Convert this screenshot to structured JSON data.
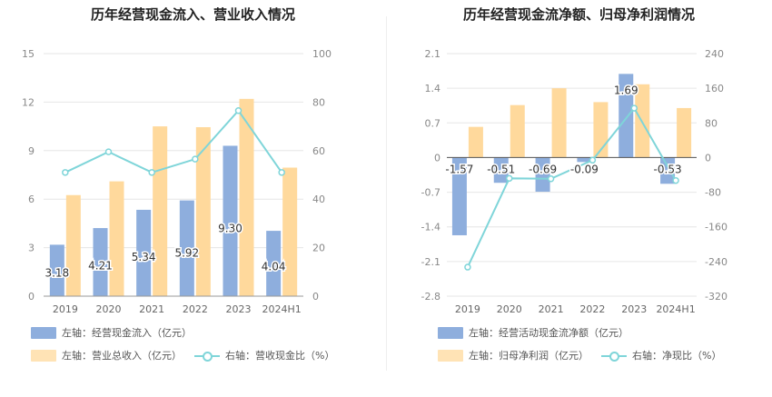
{
  "left_title": "历年经营现金流入、营业收入情况",
  "right_title": "历年经营现金流净额、归母净利润情况",
  "colors": {
    "bar_blue": "#8eaedd",
    "bar_orange": "#ffd99c",
    "line": "#7fd5d9",
    "neg_blue": "#8eaedd"
  },
  "left_legend": {
    "blue": "左轴：经营现金流入（亿元）",
    "orange": "左轴：营业总收入（亿元）",
    "line": "右轴：营收现金比（%）"
  },
  "right_legend": {
    "blue": "左轴：经营活动现金流净额（亿元）",
    "orange": "左轴：归母净利润（亿元）",
    "line": "右轴：净现比（%）"
  },
  "chart_data": [
    {
      "type": "bar",
      "title": "历年经营现金流入、营业收入情况",
      "categories": [
        "2019",
        "2020",
        "2021",
        "2022",
        "2023",
        "2024H1"
      ],
      "series": [
        {
          "name": "左轴：经营现金流入（亿元）",
          "axis": "left",
          "values": [
            3.18,
            4.21,
            5.34,
            5.92,
            9.3,
            4.04
          ],
          "labels": [
            "3.18",
            "4.21",
            "5.34",
            "5.92",
            "9.30",
            "4.04"
          ]
        },
        {
          "name": "左轴：营业总收入（亿元）",
          "axis": "left",
          "values": [
            6.25,
            7.1,
            10.5,
            10.45,
            12.2,
            7.95
          ]
        },
        {
          "name": "右轴：营收现金比（%）",
          "axis": "right",
          "kind": "line",
          "values": [
            51,
            59.5,
            51,
            56.5,
            76.5,
            51
          ]
        }
      ],
      "left_ticks": [
        "0",
        "3",
        "6",
        "9",
        "12",
        "15"
      ],
      "right_ticks": [
        "0",
        "20",
        "40",
        "60",
        "80",
        "100"
      ],
      "ylim_left": [
        0,
        15
      ],
      "ylim_right": [
        0,
        100
      ]
    },
    {
      "type": "bar",
      "title": "历年经营现金流净额、归母净利润情况",
      "categories": [
        "2019",
        "2020",
        "2021",
        "2022",
        "2023",
        "2024H1"
      ],
      "series": [
        {
          "name": "左轴：经营活动现金流净额（亿元）",
          "axis": "left",
          "values": [
            -1.57,
            -0.51,
            -0.69,
            -0.09,
            1.69,
            -0.53
          ],
          "labels": [
            "-1.57",
            "-0.51",
            "-0.69",
            "-0.09",
            "1.69",
            "-0.53"
          ]
        },
        {
          "name": "左轴：归母净利润（亿元）",
          "axis": "left",
          "values": [
            0.62,
            1.06,
            1.4,
            1.12,
            1.48,
            1.0
          ]
        },
        {
          "name": "右轴：净现比（%）",
          "axis": "right",
          "kind": "line",
          "values": [
            -253,
            -48,
            -49,
            -6,
            114,
            -53
          ]
        }
      ],
      "left_ticks": [
        "-2.8",
        "-2.1",
        "-1.4",
        "-0.7",
        "0",
        "0.7",
        "1.4",
        "2.1"
      ],
      "right_ticks": [
        "-320",
        "-240",
        "-160",
        "-80",
        "0",
        "80",
        "160",
        "240"
      ],
      "ylim_left": [
        -2.8,
        2.1
      ],
      "ylim_right": [
        -320,
        240
      ]
    }
  ]
}
